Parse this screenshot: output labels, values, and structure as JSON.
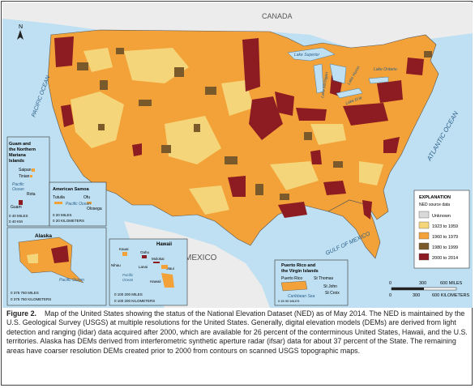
{
  "labels": {
    "canada": "CANADA",
    "mexico": "MEXICO",
    "pacific_ocean": "PACIFIC OCEAN",
    "atlantic_ocean": "ATLANTIC OCEAN",
    "gulf_of_mexico": "GULF OF MEXICO",
    "north_arrow": "N",
    "lake_superior": "Lake Superior",
    "lake_michigan": "Lake Michigan",
    "lake_huron": "Lake Huron",
    "lake_ontario": "Lake Ontario",
    "lake_erie": "Lake Erie",
    "scale_main_0": "0",
    "scale_main_miles": "300",
    "scale_main_miles_end": "600 MILES",
    "scale_main_km": "300",
    "scale_main_km_end": "600 KILOMETERS"
  },
  "guam": {
    "title_l1": "Guam and",
    "title_l2": "the Northern",
    "title_l3": "Mariana",
    "title_l4": "Islands",
    "saipan": "Saipan",
    "tinian": "Tinian",
    "rota": "Rota",
    "guam": "Guam",
    "pacific1": "Pacific",
    "pacific2": "Ocean",
    "scale1": "0  40 MILES",
    "scale2": "0  40 KM"
  },
  "samoa": {
    "title": "American Samoa",
    "tutuila": "Tutuila",
    "ofu": "Ofu",
    "olosega": "Olosega",
    "pacific": "Pacific Ocean",
    "scale1": "0    20 MILES",
    "scale2": "0  20 KILOMETERS"
  },
  "alaska": {
    "title": "Alaska",
    "pacific": "Pacific Ocean",
    "scale1": "0   375   750 MILES",
    "scale2": "0   375  750 KILOMETERS"
  },
  "hawaii": {
    "title": "Hawaii",
    "kauai": "Kauai",
    "niihau": "Nihau",
    "oahu": "Oahu",
    "molokai": "Molokai",
    "lanai": "Lanai",
    "maui": "Maui",
    "hawaii": "Hawaii",
    "pacific1": "Pacific",
    "pacific2": "Ocean",
    "scale1": "0    100   200 MILES",
    "scale2": "0  100  200 KILOMETERS"
  },
  "puerto_rico": {
    "title_l1": "Puerto Rico and",
    "title_l2": "the Virgin Islands",
    "pr": "Puerto Rico",
    "st_thomas": "St Thomas",
    "st_john": "St John",
    "st_croix": "St Croix",
    "caribbean": "Caribbean Sea",
    "scale1": "0    45    90 MILES",
    "scale2": "0  45  90 KILOMETERS"
  },
  "legend": {
    "title": "EXPLANATION",
    "subtitle": "NED source data",
    "items": [
      {
        "label": "Unknown",
        "color": "#d9d9d9"
      },
      {
        "label": "1923 to 1959",
        "color": "#f5d57a"
      },
      {
        "label": "1960 to 1979",
        "color": "#f2a238"
      },
      {
        "label": "1980 to 1999",
        "color": "#7a5a2a"
      },
      {
        "label": "2000 to 2014",
        "color": "#8c1c22"
      }
    ]
  },
  "caption": {
    "label": "Figure 2.",
    "text": "Map of the United States showing the status of the National Elevation Dataset (NED) as of May 2014. The NED is maintained by the U.S. Geological Survey (USGS) at multiple resolutions for the United States. Generally, digital elevation models (DEMs) are derived from light detection and ranging (lidar) data acquired after 2000, which are available for 26 percent of the conterminous United States, Hawaii, and the U.S. territories. Alaska has DEMs derived from interferometric synthetic aperture radar (ifsar) data for about 37 percent of the State. The remaining areas have coarser resolution DEMs created prior to 2000 from contours on scanned USGS topographic maps."
  },
  "colors": {
    "ocean": "#bfe0f2",
    "land_other": "#ececec",
    "light": "#f5d57a",
    "orange": "#f2a238",
    "brown": "#7a5a2a",
    "maroon": "#8c1c22"
  }
}
